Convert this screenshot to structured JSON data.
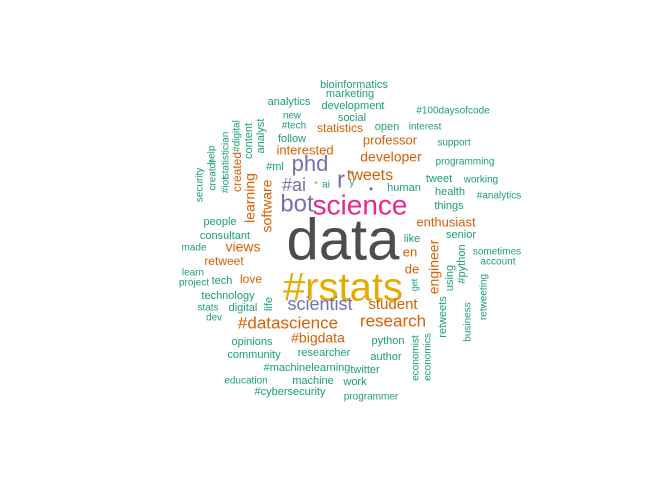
{
  "chart_data": {
    "type": "wordcloud",
    "title": "",
    "colors": {
      "tier1": "#4D4D4D",
      "tier2": "#E6AB02",
      "tier3": "#E7298A",
      "tier4": "#7570B3",
      "tier5": "#D95F02",
      "tier6": "#1B9E77"
    },
    "words": [
      {
        "text": "data",
        "weight": 1,
        "tier": "tier1"
      },
      {
        "text": "#rstats",
        "weight": 0.62,
        "tier": "tier2"
      },
      {
        "text": "science",
        "weight": 0.4,
        "tier": "tier3"
      },
      {
        "text": "bot",
        "weight": 0.3,
        "tier": "tier4"
      },
      {
        "text": "phd",
        "weight": 0.3,
        "tier": "tier4"
      },
      {
        "text": "r",
        "weight": 0.3,
        "tier": "tier4"
      },
      {
        "text": "scientist",
        "weight": 0.26,
        "tier": "tier4"
      },
      {
        "text": "#ai",
        "weight": 0.24,
        "tier": "tier4"
      },
      {
        "text": "•",
        "weight": 0.15,
        "tier": "tier4"
      },
      {
        "text": "research",
        "weight": 0.22,
        "tier": "tier5"
      },
      {
        "text": "#datascience",
        "weight": 0.22,
        "tier": "tier5"
      },
      {
        "text": "tweets",
        "weight": 0.2,
        "tier": "tier5"
      },
      {
        "text": "student",
        "weight": 0.2,
        "tier": "tier5"
      },
      {
        "text": "developer",
        "weight": 0.18,
        "tier": "tier5"
      },
      {
        "text": "software",
        "weight": 0.17,
        "tier": "tier5"
      },
      {
        "text": "#bigdata",
        "weight": 0.17,
        "tier": "tier5"
      },
      {
        "text": "learning",
        "weight": 0.17,
        "tier": "tier5"
      },
      {
        "text": "views",
        "weight": 0.16,
        "tier": "tier5"
      },
      {
        "text": "engineer",
        "weight": 0.16,
        "tier": "tier5"
      },
      {
        "text": "interested",
        "weight": 0.16,
        "tier": "tier5"
      },
      {
        "text": "professor",
        "weight": 0.15,
        "tier": "tier5"
      },
      {
        "text": "enthusiast",
        "weight": 0.15,
        "tier": "tier5"
      },
      {
        "text": "statistics",
        "weight": 0.14,
        "tier": "tier5"
      },
      {
        "text": "created",
        "weight": 0.14,
        "tier": "tier5"
      },
      {
        "text": "de",
        "weight": 0.14,
        "tier": "tier5"
      },
      {
        "text": "en",
        "weight": 0.14,
        "tier": "tier5"
      },
      {
        "text": "retweet",
        "weight": 0.14,
        "tier": "tier5"
      },
      {
        "text": "love",
        "weight": 0.14,
        "tier": "tier5"
      },
      {
        "text": "technology",
        "weight": 0.13,
        "tier": "tier6"
      },
      {
        "text": "consultant",
        "weight": 0.13,
        "tier": "tier6"
      },
      {
        "text": "things",
        "weight": 0.13,
        "tier": "tier6"
      },
      {
        "text": "tweet",
        "weight": 0.13,
        "tier": "tier6"
      },
      {
        "text": "researcher",
        "weight": 0.13,
        "tier": "tier6"
      },
      {
        "text": "python",
        "weight": 0.13,
        "tier": "tier6"
      },
      {
        "text": "#machinelearning",
        "weight": 0.13,
        "tier": "tier6"
      },
      {
        "text": "people",
        "weight": 0.12,
        "tier": "tier6"
      },
      {
        "text": "follow",
        "weight": 0.12,
        "tier": "tier6"
      },
      {
        "text": "social",
        "weight": 0.12,
        "tier": "tier6"
      },
      {
        "text": "author",
        "weight": 0.12,
        "tier": "tier6"
      },
      {
        "text": "twitter",
        "weight": 0.12,
        "tier": "tier6"
      },
      {
        "text": "opinions",
        "weight": 0.12,
        "tier": "tier6"
      },
      {
        "text": "community",
        "weight": 0.12,
        "tier": "tier6"
      },
      {
        "text": "#ml",
        "weight": 0.12,
        "tier": "tier6"
      },
      {
        "text": "analyst",
        "weight": 0.12,
        "tier": "tier6"
      },
      {
        "text": "like",
        "weight": 0.11,
        "tier": "tier6"
      },
      {
        "text": "senior",
        "weight": 0.11,
        "tier": "tier6"
      },
      {
        "text": "health",
        "weight": 0.11,
        "tier": "tier6"
      },
      {
        "text": "using",
        "weight": 0.11,
        "tier": "tier6"
      },
      {
        "text": "retweets",
        "weight": 0.11,
        "tier": "tier6"
      },
      {
        "text": "#python",
        "weight": 0.11,
        "tier": "tier6"
      },
      {
        "text": "human",
        "weight": 0.11,
        "tier": "tier6"
      },
      {
        "text": "open",
        "weight": 0.11,
        "tier": "tier6"
      },
      {
        "text": "development",
        "weight": 0.11,
        "tier": "tier6"
      },
      {
        "text": "analytics",
        "weight": 0.11,
        "tier": "tier6"
      },
      {
        "text": "marketing",
        "weight": 0.11,
        "tier": "tier6"
      },
      {
        "text": "bioinformatics",
        "weight": 0.11,
        "tier": "tier6"
      },
      {
        "text": "content",
        "weight": 0.11,
        "tier": "tier6"
      },
      {
        "text": "digital",
        "weight": 0.11,
        "tier": "tier6"
      },
      {
        "text": "tech",
        "weight": 0.11,
        "tier": "tier6"
      },
      {
        "text": "life",
        "weight": 0.11,
        "tier": "tier6"
      },
      {
        "text": "economist",
        "weight": 0.1,
        "tier": "tier6"
      },
      {
        "text": "economics",
        "weight": 0.1,
        "tier": "tier6"
      },
      {
        "text": "work",
        "weight": 0.1,
        "tier": "tier6"
      },
      {
        "text": "machine",
        "weight": 0.1,
        "tier": "tier6"
      },
      {
        "text": "education",
        "weight": 0.1,
        "tier": "tier6"
      },
      {
        "text": "#cybersecurity",
        "weight": 0.1,
        "tier": "tier6"
      },
      {
        "text": "programmer",
        "weight": 0.1,
        "tier": "tier6"
      },
      {
        "text": "business",
        "weight": 0.1,
        "tier": "tier6"
      },
      {
        "text": "retweeting",
        "weight": 0.1,
        "tier": "tier6"
      },
      {
        "text": "working",
        "weight": 0.1,
        "tier": "tier6"
      },
      {
        "text": "#analytics",
        "weight": 0.1,
        "tier": "tier6"
      },
      {
        "text": "programming",
        "weight": 0.1,
        "tier": "tier6"
      },
      {
        "text": "support",
        "weight": 0.1,
        "tier": "tier6"
      },
      {
        "text": "interest",
        "weight": 0.1,
        "tier": "tier6"
      },
      {
        "text": "#100daysofcode",
        "weight": 0.1,
        "tier": "tier6"
      },
      {
        "text": "sometimes",
        "weight": 0.1,
        "tier": "tier6"
      },
      {
        "text": "account",
        "weight": 0.1,
        "tier": "tier6"
      },
      {
        "text": "made",
        "weight": 0.1,
        "tier": "tier6"
      },
      {
        "text": "learn",
        "weight": 0.1,
        "tier": "tier6"
      },
      {
        "text": "project",
        "weight": 0.1,
        "tier": "tier6"
      },
      {
        "text": "stats",
        "weight": 0.1,
        "tier": "tier6"
      },
      {
        "text": "dev",
        "weight": 0.1,
        "tier": "tier6"
      },
      {
        "text": "security",
        "weight": 0.1,
        "tier": "tier6"
      },
      {
        "text": "creator",
        "weight": 0.1,
        "tier": "tier6"
      },
      {
        "text": "help",
        "weight": 0.1,
        "tier": "tier6"
      },
      {
        "text": "#iot",
        "weight": 0.1,
        "tier": "tier6"
      },
      {
        "text": "statistician",
        "weight": 0.1,
        "tier": "tier6"
      },
      {
        "text": "#digital",
        "weight": 0.1,
        "tier": "tier6"
      },
      {
        "text": "#tech",
        "weight": 0.1,
        "tier": "tier6"
      },
      {
        "text": "new",
        "weight": 0.1,
        "tier": "tier6"
      },
      {
        "text": "get",
        "weight": 0.1,
        "tier": "tier6"
      },
      {
        "text": "ai",
        "weight": 0.1,
        "tier": "tier6"
      },
      {
        "text": "+",
        "weight": 0.1,
        "tier": "tier6"
      },
      {
        "text": "y",
        "weight": 0.1,
        "tier": "tier6"
      },
      {
        "text": "\"",
        "weight": 0.1,
        "tier": "tier6"
      }
    ]
  }
}
